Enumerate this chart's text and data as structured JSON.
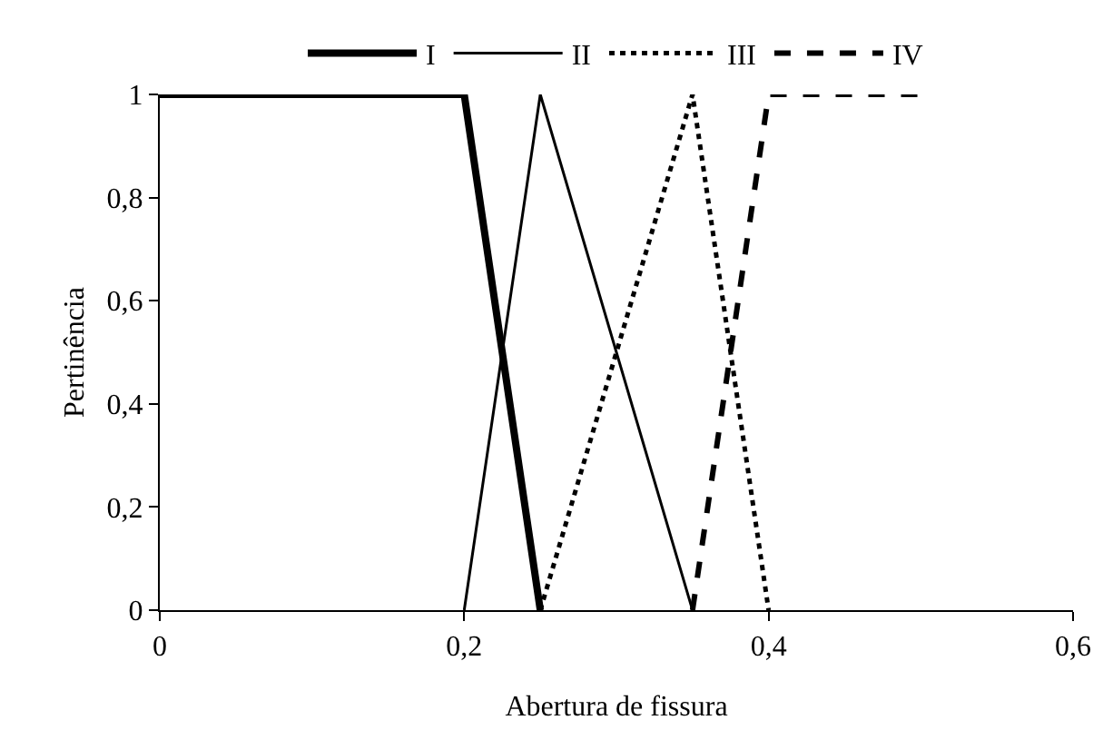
{
  "chart_data": {
    "type": "line",
    "xlabel": "Abertura de fissura",
    "ylabel": "Pertinência",
    "series": [
      {
        "name": "I",
        "color": "#000000",
        "line_style": "solid",
        "x": [
          0,
          0.2,
          0.25
        ],
        "values": [
          1,
          1,
          0
        ]
      },
      {
        "name": "II",
        "color": "#000000",
        "line_style": "solid",
        "x": [
          0.2,
          0.25,
          0.35
        ],
        "values": [
          0,
          1,
          0
        ]
      },
      {
        "name": "III",
        "color": "#000000",
        "line_style": "dotted",
        "x": [
          0.25,
          0.35,
          0.4
        ],
        "values": [
          0,
          1,
          0
        ]
      },
      {
        "name": "IV",
        "color": "#000000",
        "line_style": "dashed",
        "x": [
          0.35,
          0.4,
          0.5
        ],
        "values": [
          0,
          1,
          1
        ]
      }
    ],
    "xlim": [
      0,
      0.6
    ],
    "xticks": [
      0,
      {
        "value": 0.2,
        "label": "0,2"
      },
      {
        "value": 0.4,
        "label": "0,4"
      },
      {
        "value": 0.6,
        "label": "0,6"
      }
    ],
    "ylim": [
      0,
      1
    ],
    "yticks": [
      0,
      {
        "value": 0.2,
        "label": "0,2"
      },
      {
        "value": 0.4,
        "label": "0,4"
      },
      {
        "value": 0.6,
        "label": "0,6"
      },
      {
        "value": 0.8,
        "label": "0,8"
      },
      1
    ],
    "grid": false,
    "legend": "top",
    "marker": "none"
  }
}
